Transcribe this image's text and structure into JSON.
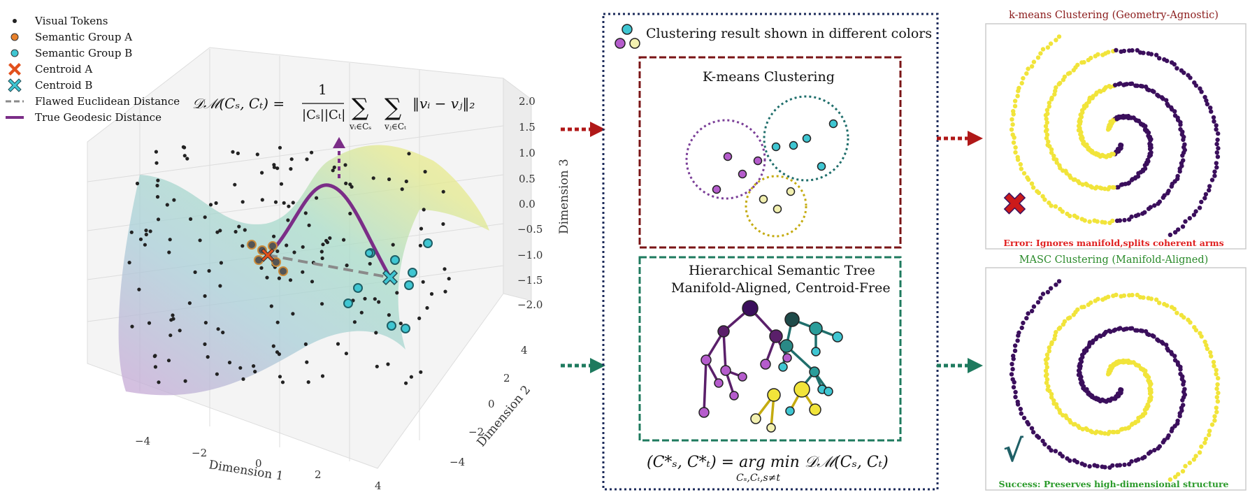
{
  "legend": {
    "visual_tokens": "Visual Tokens",
    "group_a": "Semantic Group A",
    "group_b": "Semantic Group B",
    "centroid_a": "Centroid A",
    "centroid_b": "Centroid B",
    "euclid": "Flawed Euclidean Distance",
    "geodesic": "True Geodesic Distance"
  },
  "plot3d": {
    "axes": {
      "x_label": "Dimension 1",
      "y_label": "Dimension 2",
      "z_label": "Dimension 3",
      "x_ticks": [
        "−4",
        "−2",
        "0",
        "2",
        "4"
      ],
      "y_ticks": [
        "4",
        "2",
        "0",
        "−2",
        "−4"
      ],
      "z_ticks": [
        "2.0",
        "1.5",
        "1.0",
        "0.5",
        "0.0",
        "−0.5",
        "−1.0",
        "−1.5",
        "−2.0"
      ]
    },
    "formula": {
      "lhs": "𝒟ℳ(Cₛ, Cₜ) =",
      "num": "1",
      "den": "|Cₛ||Cₜ|",
      "sum1": "∑",
      "sum2": "∑",
      "sub1": "vᵢ∈Cₛ",
      "sub2": "vⱼ∈Cₜ",
      "body": "‖vᵢ − vⱼ‖₂"
    }
  },
  "middle": {
    "title": "Clustering result shown in different colors",
    "kmeans_title": "K-means Clustering",
    "tree_title_1": "Hierarchical Semantic Tree",
    "tree_title_2": "Manifold-Aligned, Centroid-Free",
    "formula_lhs": "(C*ₛ, C*ₜ) = arg min 𝒟ℳ(Cₛ, Cₜ)",
    "formula_sub": "Cₛ,Cₜ,s≠t"
  },
  "right": {
    "top_title": "k-means Clustering (Geometry-Agnostic)",
    "top_caption": "Error: Ignores manifold,splits coherent arms",
    "bottom_title": "MASC Clustering (Manifold-Aligned)",
    "bottom_caption": "Success: Preserves high-dimensional structure",
    "error_mark": "✖",
    "check_mark": "√"
  },
  "colors": {
    "purple": "#7b3f98",
    "teal": "#1f6e6b",
    "cyan": "#3fc6d2",
    "yellow": "#f1e43a",
    "dark_purple": "#3b0f5c",
    "red_dark": "#7a1416",
    "green_dark": "#1e7a5e",
    "navy": "#1b2a5a"
  }
}
